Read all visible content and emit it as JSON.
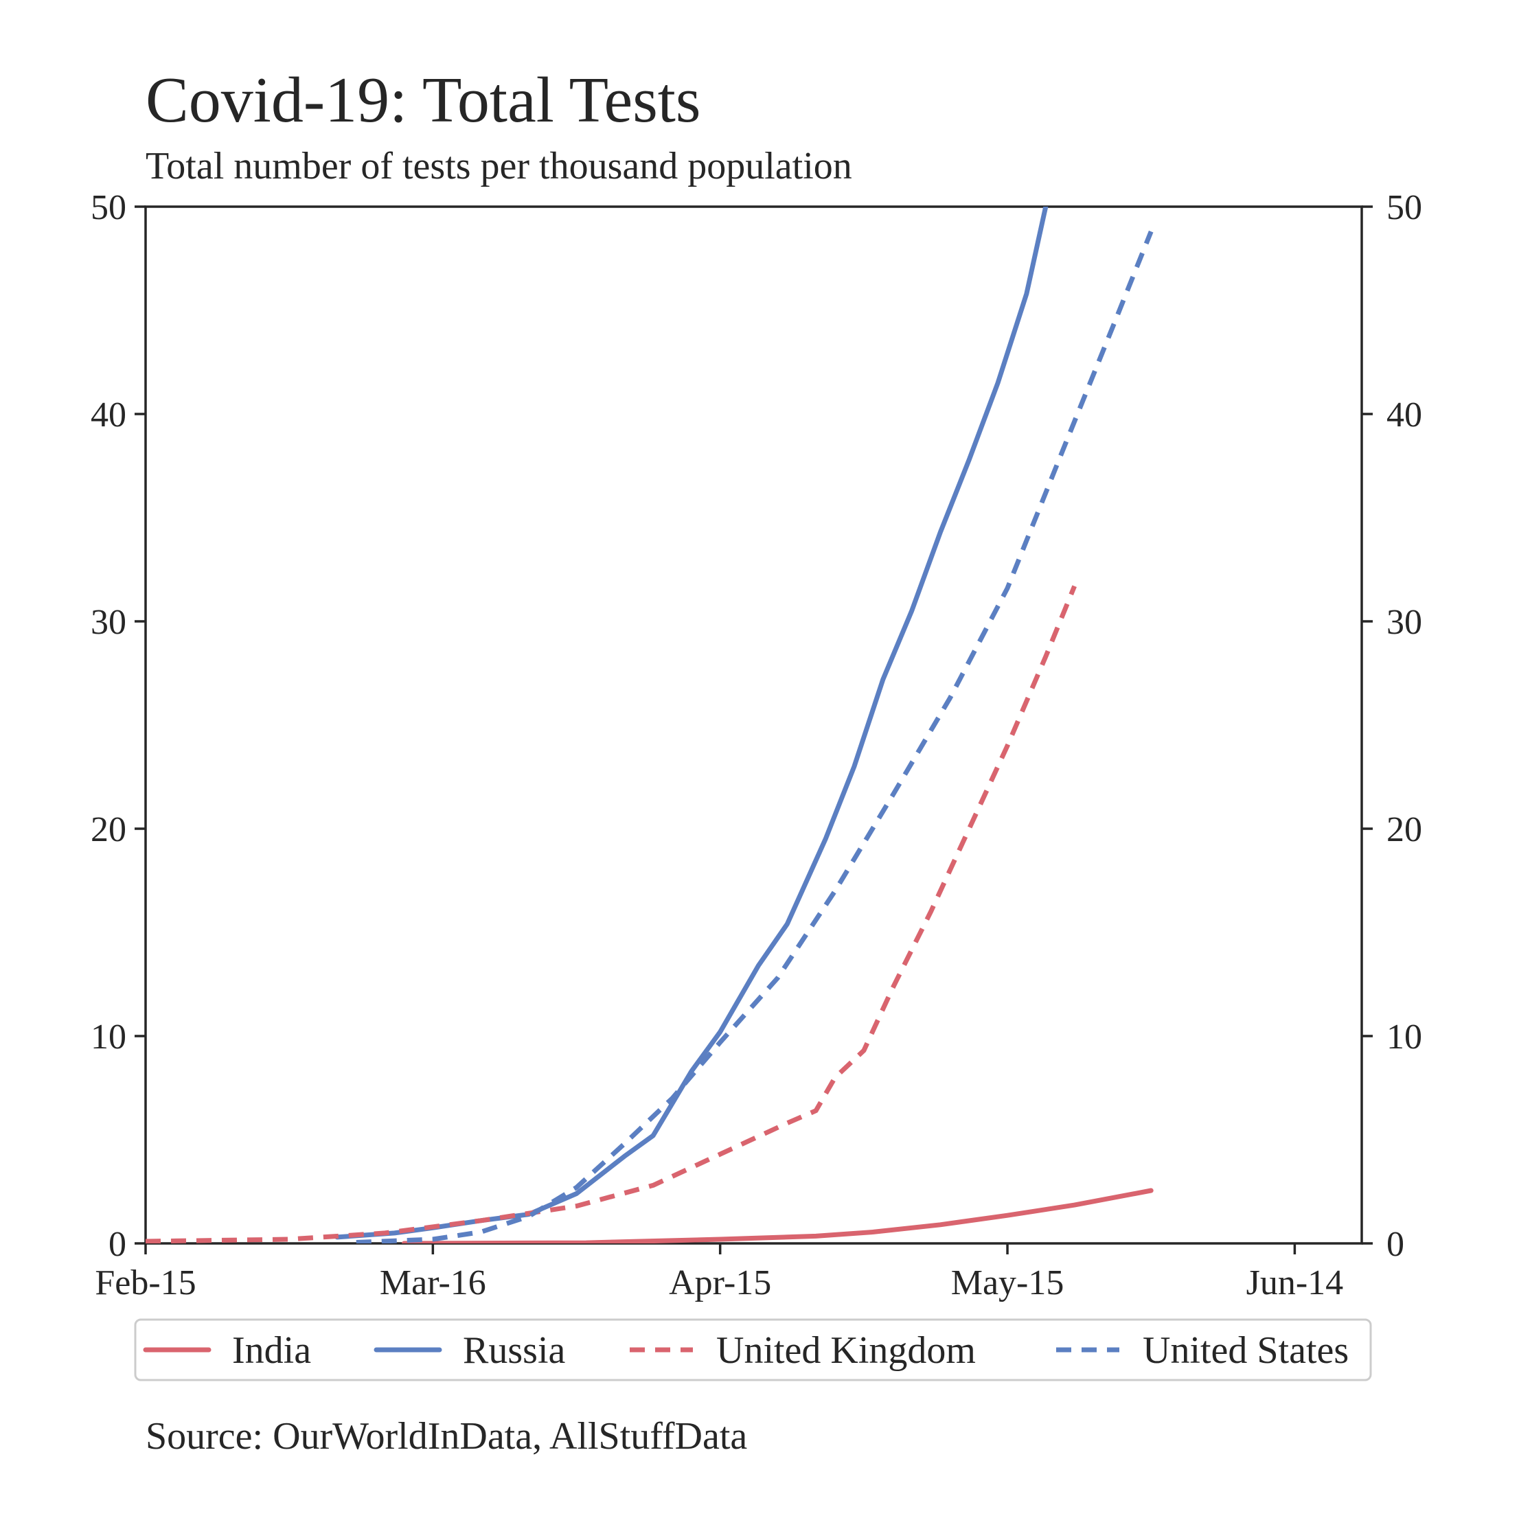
{
  "chart_data": {
    "type": "line",
    "title": "Covid-19: Total Tests",
    "subtitle": "Total number of tests per thousand population",
    "source": "Source: OurWorldInData, AllStuffData",
    "xlabel": "",
    "ylabel": "",
    "x_ticks": [
      {
        "date": "2020-02-15",
        "label": "Feb-15"
      },
      {
        "date": "2020-03-16",
        "label": "Mar-16"
      },
      {
        "date": "2020-04-15",
        "label": "Apr-15"
      },
      {
        "date": "2020-05-15",
        "label": "May-15"
      },
      {
        "date": "2020-06-14",
        "label": "Jun-14"
      }
    ],
    "xlim": [
      "2020-02-15",
      "2020-06-21"
    ],
    "ylim": [
      0,
      50
    ],
    "y_ticks": [
      0,
      10,
      20,
      30,
      40,
      50
    ],
    "secondary_y_axis": true,
    "grid": false,
    "legend_position": "bottom",
    "series": [
      {
        "name": "India",
        "color": "#d9646e",
        "dash": "solid",
        "points": [
          {
            "x": "2020-03-13",
            "y": 0.0
          },
          {
            "x": "2020-04-01",
            "y": 0.03
          },
          {
            "x": "2020-04-15",
            "y": 0.2
          },
          {
            "x": "2020-04-25",
            "y": 0.35
          },
          {
            "x": "2020-05-01",
            "y": 0.55
          },
          {
            "x": "2020-05-08",
            "y": 0.9
          },
          {
            "x": "2020-05-15",
            "y": 1.35
          },
          {
            "x": "2020-05-22",
            "y": 1.85
          },
          {
            "x": "2020-05-30",
            "y": 2.55
          }
        ]
      },
      {
        "name": "Russia",
        "color": "#5b7fc2",
        "dash": "solid",
        "points": [
          {
            "x": "2020-03-06",
            "y": 0.3
          },
          {
            "x": "2020-03-12",
            "y": 0.5
          },
          {
            "x": "2020-03-16",
            "y": 0.75
          },
          {
            "x": "2020-03-21",
            "y": 1.1
          },
          {
            "x": "2020-03-26",
            "y": 1.4
          },
          {
            "x": "2020-03-31",
            "y": 2.4
          },
          {
            "x": "2020-04-05",
            "y": 4.2
          },
          {
            "x": "2020-04-08",
            "y": 5.2
          },
          {
            "x": "2020-04-12",
            "y": 8.3
          },
          {
            "x": "2020-04-15",
            "y": 10.2
          },
          {
            "x": "2020-04-19",
            "y": 13.4
          },
          {
            "x": "2020-04-22",
            "y": 15.4
          },
          {
            "x": "2020-04-26",
            "y": 19.5
          },
          {
            "x": "2020-04-29",
            "y": 23.0
          },
          {
            "x": "2020-05-02",
            "y": 27.2
          },
          {
            "x": "2020-05-05",
            "y": 30.5
          },
          {
            "x": "2020-05-08",
            "y": 34.3
          },
          {
            "x": "2020-05-11",
            "y": 37.8
          },
          {
            "x": "2020-05-14",
            "y": 41.5
          },
          {
            "x": "2020-05-17",
            "y": 45.8
          },
          {
            "x": "2020-05-19",
            "y": 50.0
          }
        ]
      },
      {
        "name": "United Kingdom",
        "color": "#d9646e",
        "dash": "dashed",
        "points": [
          {
            "x": "2020-02-15",
            "y": 0.1
          },
          {
            "x": "2020-03-01",
            "y": 0.2
          },
          {
            "x": "2020-03-11",
            "y": 0.5
          },
          {
            "x": "2020-03-21",
            "y": 1.1
          },
          {
            "x": "2020-03-31",
            "y": 1.8
          },
          {
            "x": "2020-04-08",
            "y": 2.8
          },
          {
            "x": "2020-04-15",
            "y": 4.3
          },
          {
            "x": "2020-04-22",
            "y": 5.8
          },
          {
            "x": "2020-04-25",
            "y": 6.4
          },
          {
            "x": "2020-04-27",
            "y": 8.0
          },
          {
            "x": "2020-04-30",
            "y": 9.3
          },
          {
            "x": "2020-05-03",
            "y": 12.3
          },
          {
            "x": "2020-05-07",
            "y": 16.0
          },
          {
            "x": "2020-05-11",
            "y": 20.0
          },
          {
            "x": "2020-05-15",
            "y": 24.0
          },
          {
            "x": "2020-05-19",
            "y": 28.3
          },
          {
            "x": "2020-05-22",
            "y": 31.7
          }
        ]
      },
      {
        "name": "United States",
        "color": "#5b7fc2",
        "dash": "dashed",
        "points": [
          {
            "x": "2020-03-08",
            "y": 0.05
          },
          {
            "x": "2020-03-16",
            "y": 0.2
          },
          {
            "x": "2020-03-21",
            "y": 0.55
          },
          {
            "x": "2020-03-26",
            "y": 1.3
          },
          {
            "x": "2020-03-31",
            "y": 2.7
          },
          {
            "x": "2020-04-05",
            "y": 4.8
          },
          {
            "x": "2020-04-10",
            "y": 7.0
          },
          {
            "x": "2020-04-15",
            "y": 9.7
          },
          {
            "x": "2020-04-21",
            "y": 12.8
          },
          {
            "x": "2020-04-27",
            "y": 17.0
          },
          {
            "x": "2020-05-03",
            "y": 21.6
          },
          {
            "x": "2020-05-09",
            "y": 26.3
          },
          {
            "x": "2020-05-15",
            "y": 31.6
          },
          {
            "x": "2020-05-21",
            "y": 38.5
          },
          {
            "x": "2020-05-26",
            "y": 44.2
          },
          {
            "x": "2020-05-30",
            "y": 48.8
          }
        ]
      }
    ]
  }
}
